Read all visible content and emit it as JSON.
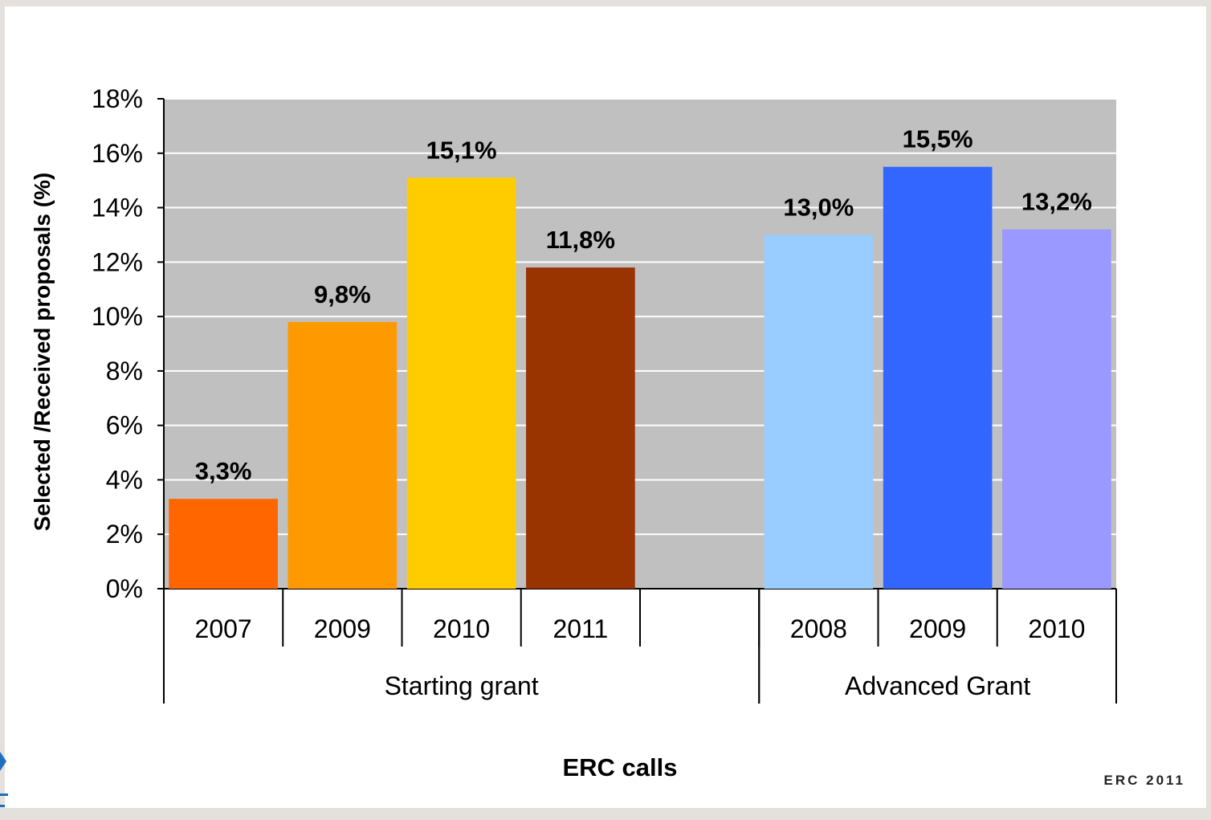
{
  "chart_data": {
    "type": "bar",
    "title": "",
    "xlabel": "ERC calls",
    "ylabel": "Selected /Received proposals (%)",
    "ylim": [
      0,
      18
    ],
    "yticks": [
      "0%",
      "2%",
      "4%",
      "6%",
      "8%",
      "10%",
      "12%",
      "14%",
      "16%",
      "18%"
    ],
    "grid": true,
    "groups": [
      {
        "name": "Starting grant",
        "categories": [
          "2007",
          "2009",
          "2010",
          "2011",
          ""
        ],
        "values": [
          3.3,
          9.8,
          15.1,
          11.8,
          null
        ],
        "labels": [
          "3,3%",
          "9,8%",
          "15,1%",
          "11,8%",
          ""
        ],
        "colors": [
          "#ff6600",
          "#ff9900",
          "#ffcc00",
          "#993300",
          null
        ]
      },
      {
        "name": "Advanced Grant",
        "categories": [
          "2008",
          "2009",
          "2010"
        ],
        "values": [
          13.0,
          15.5,
          13.2
        ],
        "labels": [
          "13,0%",
          "15,5%",
          "13,2%"
        ],
        "colors": [
          "#99ccff",
          "#3366ff",
          "#9999ff"
        ]
      }
    ],
    "plot_background": "#c0c0c0"
  },
  "footer": "ERC 2011"
}
